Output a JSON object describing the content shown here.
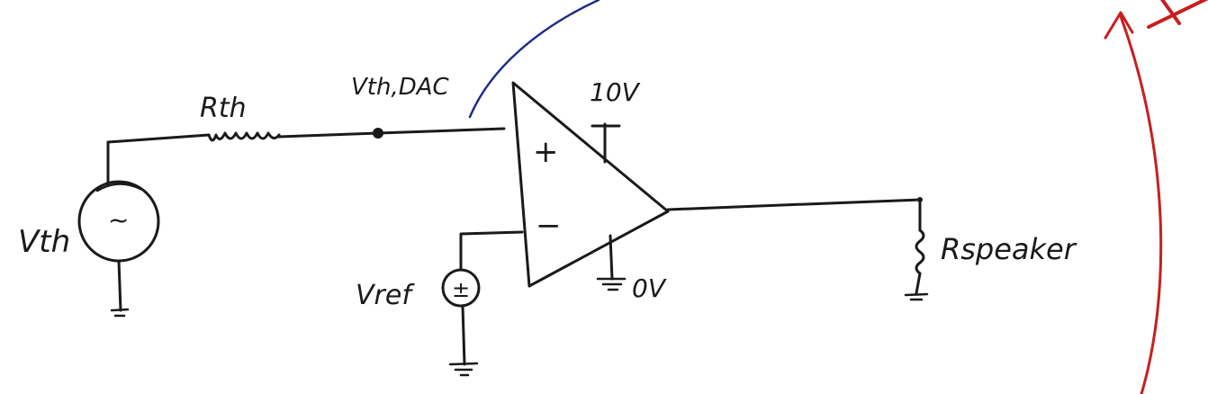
{
  "labels": {
    "rth": "Rth",
    "vth_dac": "Vth,DAC",
    "vth": "Vth",
    "vref": "Vref",
    "supply_pos": "10V",
    "supply_neg": "0V",
    "rspeaker": "Rspeaker",
    "plus": "+",
    "minus": "−",
    "ac_symbol": "~",
    "dc_symbol": "±"
  },
  "colors": {
    "ink": "#1a1a1a",
    "blue_annotation": "#1f2a8a",
    "red_annotation": "#c81e1e"
  }
}
